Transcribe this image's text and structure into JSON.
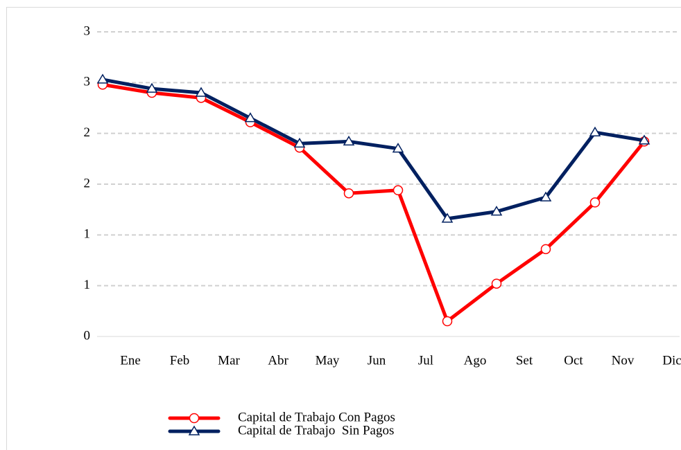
{
  "chart_data": {
    "type": "line",
    "categories": [
      "Ene",
      "Feb",
      "Mar",
      "Abr",
      "May",
      "Jun",
      "Jul",
      "Ago",
      "Set",
      "Oct",
      "Nov",
      "Dic"
    ],
    "series": [
      {
        "name": "Capital de Trabajo Con Pagos",
        "color": "#ff0000",
        "marker": "circle",
        "values": [
          2.48,
          2.4,
          2.35,
          2.11,
          1.86,
          1.41,
          1.44,
          0.15,
          0.52,
          0.86,
          1.32,
          1.92
        ]
      },
      {
        "name": "Capital de Trabajo  Sin Pagos",
        "color": "#002060",
        "marker": "triangle",
        "values": [
          2.53,
          2.44,
          2.4,
          2.15,
          1.9,
          1.92,
          1.85,
          1.16,
          1.23,
          1.37,
          2.01,
          1.93
        ]
      }
    ],
    "ylim": [
      0,
      3
    ],
    "yticks": [
      0,
      {
        "value": 0.5,
        "label": "1"
      },
      1,
      {
        "value": 1.5,
        "label": "2"
      },
      2,
      {
        "value": 2.5,
        "label": "3"
      },
      3
    ],
    "grid": true,
    "legend": "bottom"
  }
}
